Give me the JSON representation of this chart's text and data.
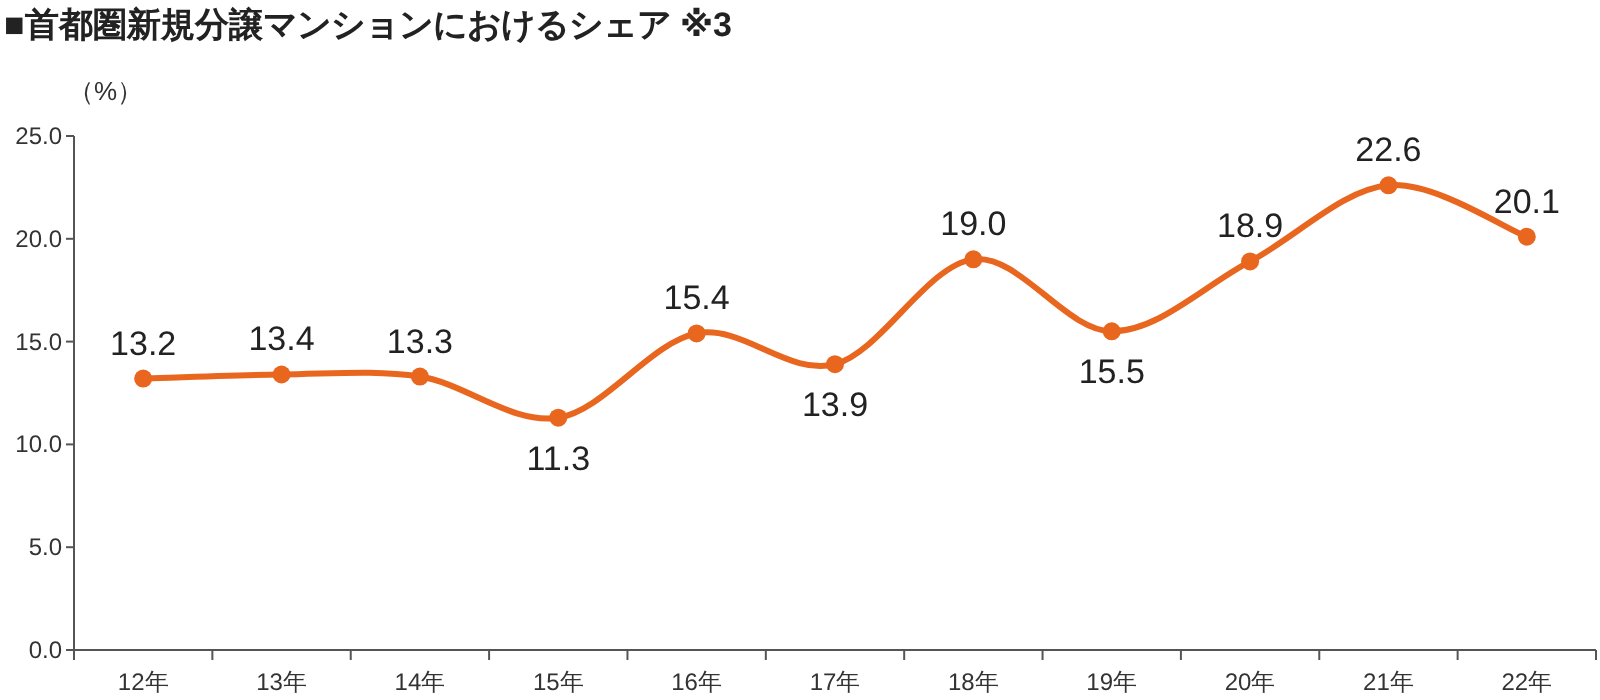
{
  "chart_data": {
    "type": "line",
    "title": "■首都圏新規分譲マンションにおけるシェア ※3",
    "ylabel": "（%）",
    "categories": [
      "12年",
      "13年",
      "14年",
      "15年",
      "16年",
      "17年",
      "18年",
      "19年",
      "20年",
      "21年",
      "22年"
    ],
    "series": [
      {
        "color": "#e8661e",
        "values": [
          13.2,
          13.4,
          13.3,
          11.3,
          15.4,
          13.9,
          19.0,
          15.5,
          18.9,
          22.6,
          20.1
        ],
        "value_labels": [
          "13.2",
          "13.4",
          "13.3",
          "11.3",
          "15.4",
          "13.9",
          "19.0",
          "15.5",
          "18.9",
          "22.6",
          "20.1"
        ]
      }
    ],
    "ylim": [
      0,
      25
    ],
    "yticks": [
      {
        "value": 0,
        "label": "0.0"
      },
      {
        "value": 5,
        "label": "5.0"
      },
      {
        "value": 10,
        "label": "10.0"
      },
      {
        "value": 15,
        "label": "15.0"
      },
      {
        "value": 20,
        "label": "20.0"
      },
      {
        "value": 25,
        "label": "25.0"
      }
    ],
    "marker": "circle",
    "line_style": "solid",
    "grid": false
  }
}
